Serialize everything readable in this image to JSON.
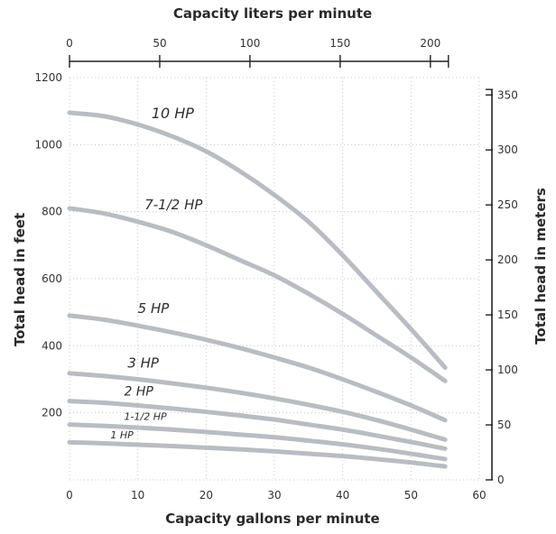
{
  "chart_data": {
    "type": "line",
    "xlabel": "Capacity gallons per minute",
    "ylabel": "Total head in feet",
    "x2label": "Capacity liters per minute",
    "y2label": "Total head in meters",
    "xlim": [
      0,
      60
    ],
    "ylim": [
      0,
      1200
    ],
    "x2lim": [
      0,
      227.1
    ],
    "y2lim": [
      0,
      365.8
    ],
    "x_ticks": [
      "0",
      "10",
      "20",
      "30",
      "40",
      "50",
      "60"
    ],
    "y_ticks": [
      "200",
      "400",
      "600",
      "800",
      "1000",
      "1200"
    ],
    "x2_ticks": [
      "0",
      "50",
      "100",
      "150",
      "200"
    ],
    "y2_ticks": [
      "0",
      "50",
      "100",
      "150",
      "200",
      "250",
      "300",
      "350"
    ],
    "grid": true,
    "colors": {
      "curve": "#b9bcc1",
      "axis": "#222222",
      "grid": "#c8c8c8",
      "text": "#2a2a2a"
    },
    "x": [
      0,
      5,
      10,
      15,
      20,
      25,
      30,
      35,
      40,
      45,
      50,
      55
    ],
    "series": [
      {
        "name": "10 HP",
        "values": [
          1095,
          1085,
          1060,
          1025,
          980,
          920,
          850,
          770,
          670,
          560,
          450,
          335
        ]
      },
      {
        "name": "7-1/2 HP",
        "values": [
          810,
          795,
          770,
          740,
          700,
          655,
          610,
          555,
          495,
          430,
          365,
          295
        ]
      },
      {
        "name": "5 HP",
        "values": [
          490,
          478,
          460,
          440,
          418,
          393,
          365,
          335,
          300,
          262,
          222,
          178
        ]
      },
      {
        "name": "3 HP",
        "values": [
          318,
          310,
          300,
          288,
          275,
          260,
          243,
          224,
          203,
          178,
          150,
          120
        ]
      },
      {
        "name": "2 HP",
        "values": [
          235,
          230,
          222,
          213,
          203,
          192,
          180,
          165,
          150,
          132,
          113,
          93
        ]
      },
      {
        "name": "1-1/2 HP",
        "values": [
          165,
          161,
          156,
          150,
          143,
          135,
          127,
          117,
          106,
          93,
          78,
          62
        ]
      },
      {
        "name": "1 HP",
        "values": [
          112,
          109,
          105,
          101,
          96,
          91,
          85,
          78,
          71,
          62,
          52,
          40
        ]
      }
    ]
  }
}
